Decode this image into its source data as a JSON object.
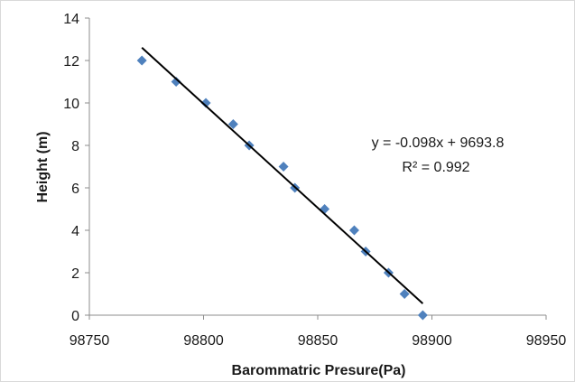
{
  "chart_data": {
    "type": "scatter",
    "title": "",
    "xlabel": "Barommatric Presure(Pa)",
    "ylabel": "Height  (m)",
    "xlim": [
      98750,
      98950
    ],
    "ylim": [
      0,
      14
    ],
    "x_ticks": [
      "98750",
      "98800",
      "98850",
      "98900",
      "98950"
    ],
    "y_ticks": [
      "0",
      "2",
      "4",
      "6",
      "8",
      "10",
      "12",
      "14"
    ],
    "grid": false,
    "legend": "none",
    "series": [
      {
        "marker": "diamond",
        "color": "#4f81bd",
        "points": [
          {
            "x": 98773,
            "y": 12
          },
          {
            "x": 98788,
            "y": 11
          },
          {
            "x": 98801,
            "y": 10
          },
          {
            "x": 98813,
            "y": 9
          },
          {
            "x": 98820,
            "y": 8
          },
          {
            "x": 98835,
            "y": 7
          },
          {
            "x": 98840,
            "y": 6
          },
          {
            "x": 98853,
            "y": 5
          },
          {
            "x": 98866,
            "y": 4
          },
          {
            "x": 98871,
            "y": 3
          },
          {
            "x": 98881,
            "y": 2
          },
          {
            "x": 98888,
            "y": 1
          },
          {
            "x": 98896,
            "y": 0
          }
        ]
      }
    ],
    "trendline": {
      "type": "linear",
      "color": "#000000",
      "x_range": [
        98773,
        98896
      ],
      "equation": "y = -0.098x + 9693.8",
      "r_squared": "R² = 0.992"
    }
  }
}
